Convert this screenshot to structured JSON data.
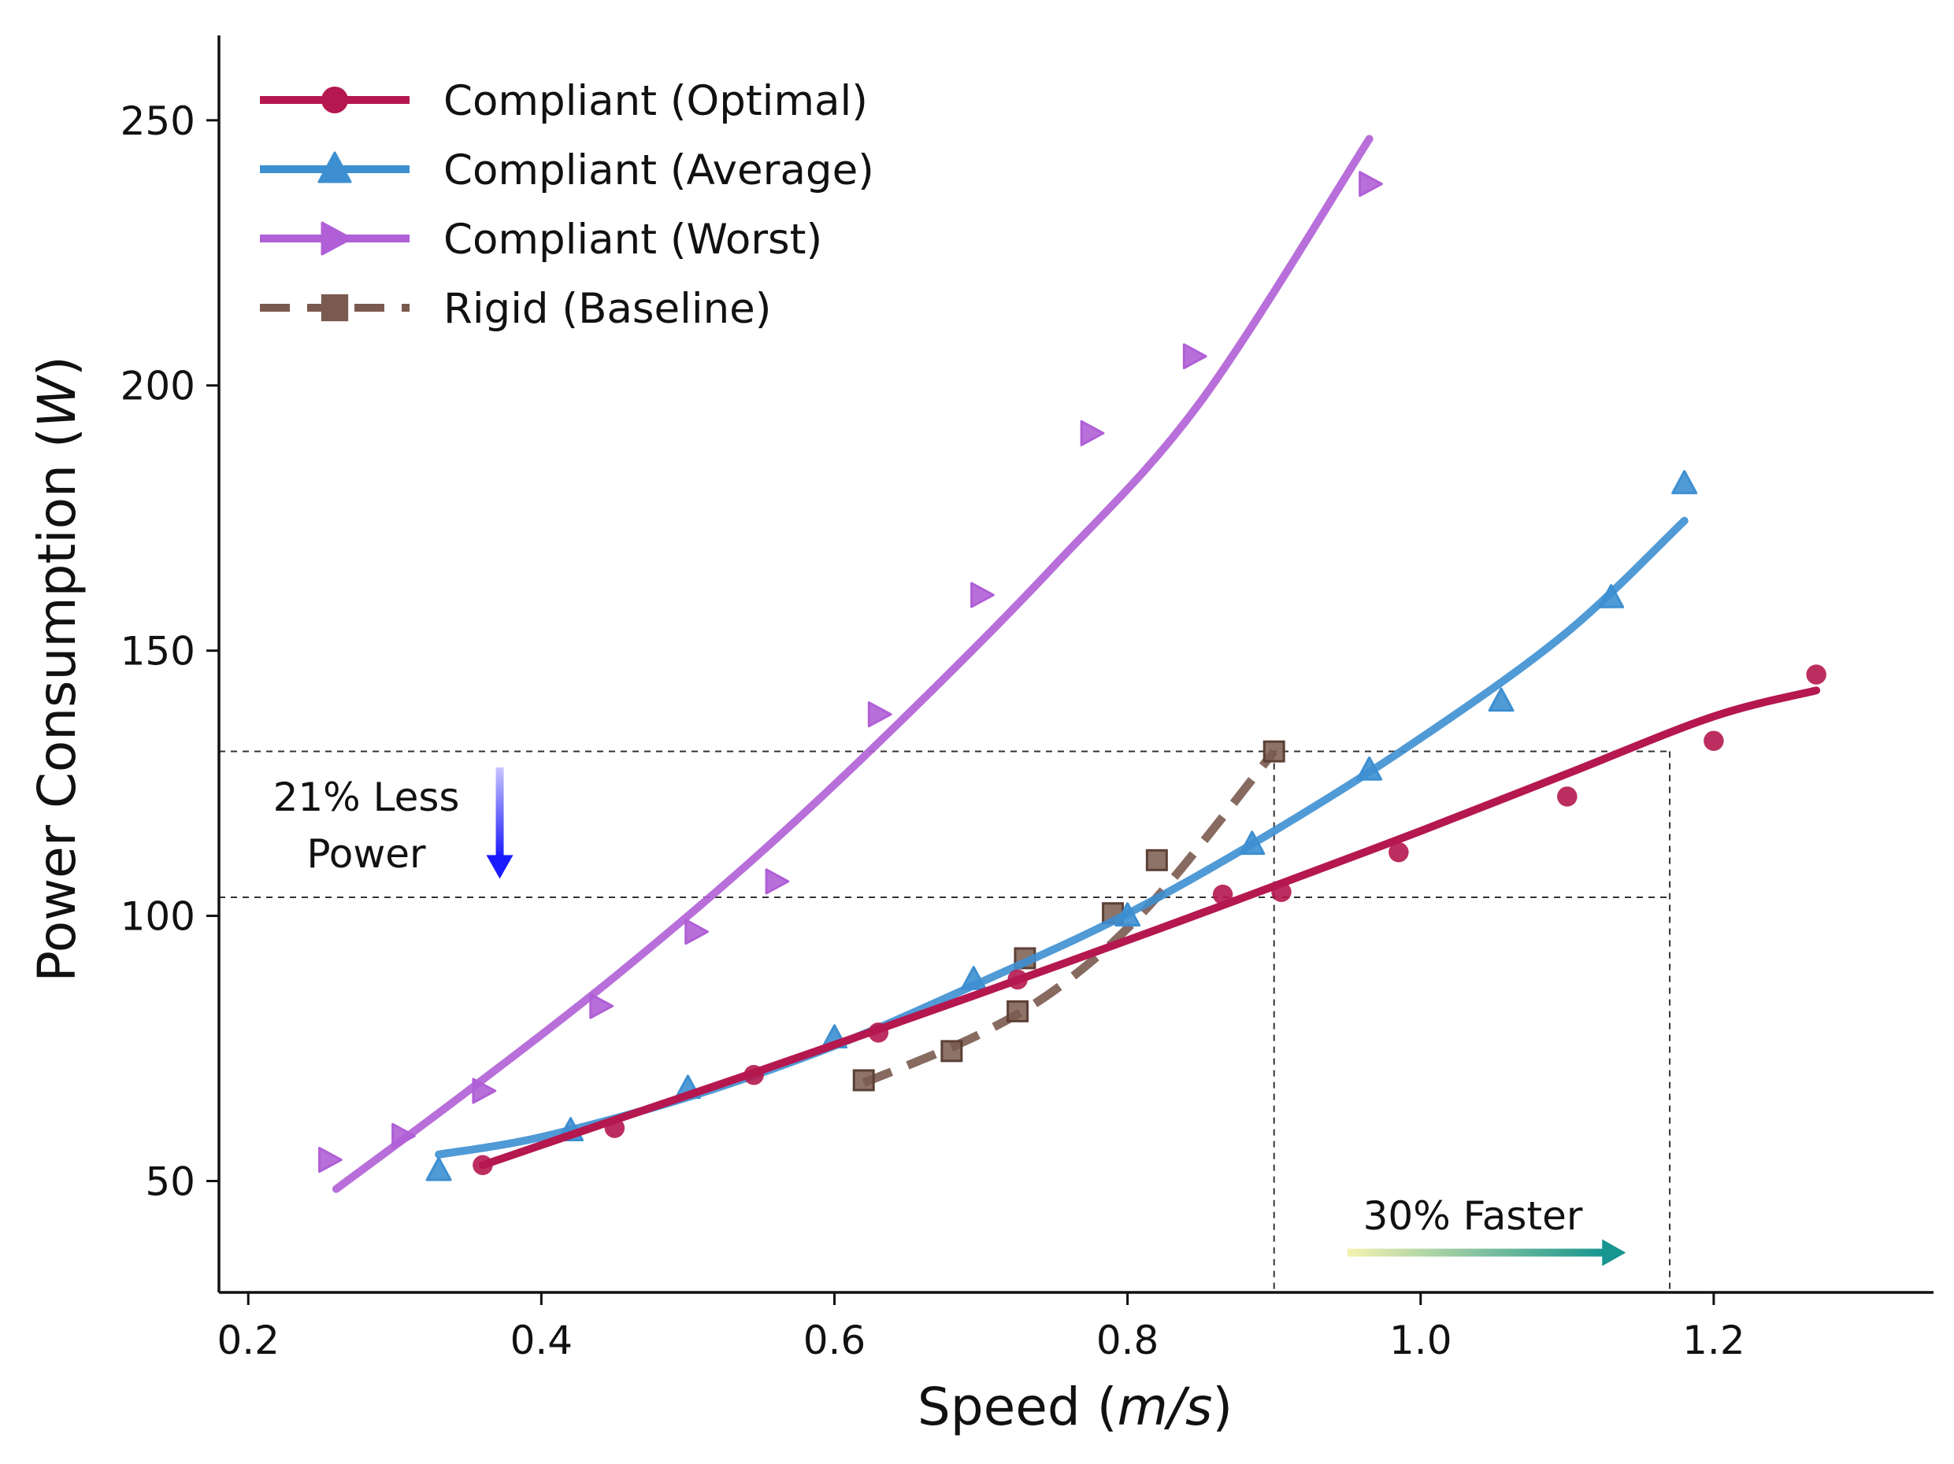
{
  "chart_data": {
    "type": "line",
    "title": "",
    "xlabel": "Speed",
    "xlabel_unit": "m/s",
    "ylabel": "Power Consumption",
    "ylabel_unit": "W",
    "xlim": [
      0.18,
      1.35
    ],
    "ylim": [
      29,
      266
    ],
    "x_ticks": [
      0.2,
      0.4,
      0.6,
      0.8,
      1.0,
      1.2
    ],
    "x_tick_labels": [
      "0.2",
      "0.4",
      "0.6",
      "0.8",
      "1.0",
      "1.2"
    ],
    "y_ticks": [
      50,
      100,
      150,
      200,
      250
    ],
    "y_tick_labels": [
      "50",
      "100",
      "150",
      "200",
      "250"
    ],
    "grid": false,
    "legend_position": "top-left",
    "series": [
      {
        "name": "Compliant (Optimal)",
        "color": "#b5174f",
        "marker": "circle",
        "line_style": "solid",
        "points": [
          [
            0.36,
            53
          ],
          [
            0.45,
            60
          ],
          [
            0.545,
            70
          ],
          [
            0.63,
            78
          ],
          [
            0.725,
            88
          ],
          [
            0.865,
            104
          ],
          [
            0.905,
            104.5
          ],
          [
            0.985,
            112
          ],
          [
            1.1,
            122.5
          ],
          [
            1.2,
            133
          ],
          [
            1.27,
            145.5
          ]
        ],
        "fit": [
          [
            0.36,
            53
          ],
          [
            0.45,
            61.5
          ],
          [
            0.545,
            70.4
          ],
          [
            0.63,
            78.6
          ],
          [
            0.725,
            87.9
          ],
          [
            0.82,
            97.4
          ],
          [
            0.9,
            105.6
          ],
          [
            1.0,
            116
          ],
          [
            1.1,
            126.8
          ],
          [
            1.2,
            137.6
          ],
          [
            1.27,
            142.5
          ]
        ]
      },
      {
        "name": "Compliant (Average)",
        "color": "#3d8fd1",
        "marker": "triangle-up",
        "line_style": "solid",
        "points": [
          [
            0.33,
            52
          ],
          [
            0.42,
            59.5
          ],
          [
            0.5,
            67.5
          ],
          [
            0.6,
            77
          ],
          [
            0.695,
            88
          ],
          [
            0.8,
            100
          ],
          [
            0.885,
            113.5
          ],
          [
            0.965,
            127.5
          ],
          [
            1.055,
            140.5
          ],
          [
            1.13,
            160
          ],
          [
            1.18,
            181.5
          ]
        ],
        "fit": [
          [
            0.33,
            55
          ],
          [
            0.4,
            58.3
          ],
          [
            0.5,
            65.8
          ],
          [
            0.6,
            75.5
          ],
          [
            0.7,
            87.5
          ],
          [
            0.8,
            100.4
          ],
          [
            0.9,
            116
          ],
          [
            1.0,
            133.5
          ],
          [
            1.1,
            153.5
          ],
          [
            1.18,
            174.5
          ]
        ]
      },
      {
        "name": "Compliant (Worst)",
        "color": "#b05fd6",
        "marker": "triangle-right",
        "line_style": "solid",
        "points": [
          [
            0.255,
            54
          ],
          [
            0.305,
            58.5
          ],
          [
            0.36,
            67
          ],
          [
            0.44,
            83
          ],
          [
            0.505,
            97
          ],
          [
            0.56,
            106.5
          ],
          [
            0.63,
            138
          ],
          [
            0.7,
            160.5
          ],
          [
            0.775,
            191
          ],
          [
            0.845,
            205.5
          ],
          [
            0.965,
            238
          ]
        ],
        "fit": [
          [
            0.26,
            48.5
          ],
          [
            0.35,
            67
          ],
          [
            0.45,
            88.5
          ],
          [
            0.55,
            112
          ],
          [
            0.65,
            138
          ],
          [
            0.75,
            166
          ],
          [
            0.85,
            197
          ],
          [
            0.965,
            246.5
          ]
        ]
      },
      {
        "name": "Rigid (Baseline)",
        "color": "#7a5a4f",
        "marker": "square",
        "line_style": "dashed",
        "points": [
          [
            0.62,
            69
          ],
          [
            0.68,
            74.5
          ],
          [
            0.725,
            82
          ],
          [
            0.73,
            92
          ],
          [
            0.79,
            100.5
          ],
          [
            0.82,
            110.5
          ],
          [
            0.9,
            131
          ]
        ],
        "fit": [
          [
            0.62,
            68.5
          ],
          [
            0.7,
            77.8
          ],
          [
            0.76,
            88
          ],
          [
            0.82,
            103.5
          ],
          [
            0.9,
            131
          ]
        ]
      }
    ],
    "reference_lines": {
      "horizontal": [
        131,
        103.5
      ],
      "vertical": [
        0.9,
        1.17
      ]
    },
    "annotations": [
      {
        "text_lines": [
          "21% Less",
          "Power"
        ],
        "arrow": "down",
        "arrow_color": "#1a1aff",
        "x": 0.37,
        "y_from": 128,
        "y_to": 107
      },
      {
        "text_lines": [
          "30% Faster"
        ],
        "arrow": "right",
        "arrow_color_start": "#f5f2b0",
        "arrow_color_end": "#17958f",
        "x_from": 0.95,
        "x_to": 1.14,
        "y": 36.5
      }
    ]
  }
}
